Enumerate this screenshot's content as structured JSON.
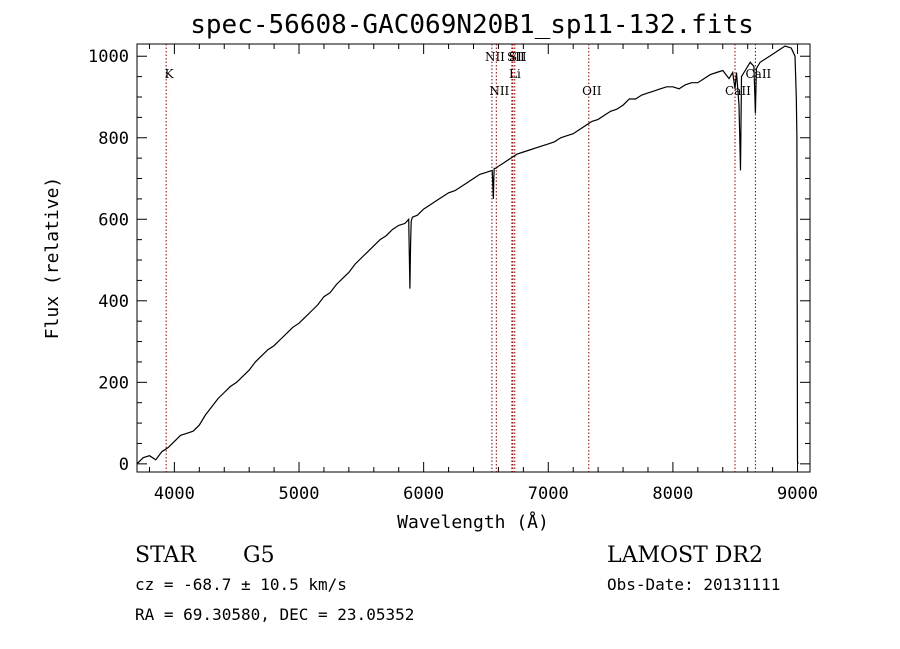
{
  "chart_data": {
    "type": "line",
    "title": "spec-56608-GAC069N20B1_sp11-132.fits",
    "xlabel": "Wavelength (Å)",
    "ylabel": "Flux (relative)",
    "xlim": [
      3700,
      9100
    ],
    "ylim": [
      -20,
      1030
    ],
    "xticks": [
      4000,
      5000,
      6000,
      7000,
      8000,
      9000
    ],
    "yticks": [
      0,
      200,
      400,
      600,
      800,
      1000
    ],
    "grid": false,
    "series": [
      {
        "color": "#000000",
        "x": [
          3700,
          3750,
          3800,
          3850,
          3900,
          3950,
          4000,
          4050,
          4100,
          4150,
          4200,
          4250,
          4300,
          4350,
          4400,
          4450,
          4500,
          4550,
          4600,
          4650,
          4700,
          4750,
          4800,
          4850,
          4900,
          4950,
          5000,
          5050,
          5100,
          5150,
          5200,
          5250,
          5300,
          5350,
          5400,
          5450,
          5500,
          5550,
          5600,
          5650,
          5700,
          5750,
          5800,
          5850,
          5880,
          5890,
          5895,
          5900,
          5910,
          5950,
          6000,
          6050,
          6100,
          6150,
          6200,
          6250,
          6300,
          6350,
          6400,
          6450,
          6500,
          6550,
          6560,
          6563,
          6566,
          6580,
          6600,
          6650,
          6700,
          6750,
          6800,
          6850,
          6900,
          6950,
          7000,
          7050,
          7100,
          7150,
          7200,
          7250,
          7300,
          7350,
          7400,
          7450,
          7500,
          7550,
          7600,
          7650,
          7700,
          7750,
          7800,
          7850,
          7900,
          7950,
          8000,
          8050,
          8100,
          8150,
          8200,
          8250,
          8300,
          8350,
          8400,
          8450,
          8480,
          8498,
          8510,
          8530,
          8542,
          8550,
          8580,
          8620,
          8650,
          8662,
          8670,
          8700,
          8750,
          8800,
          8850,
          8900,
          8950,
          8980,
          8990,
          8995,
          9000,
          9005
        ],
        "y": [
          0,
          15,
          20,
          10,
          30,
          40,
          55,
          70,
          75,
          80,
          95,
          120,
          140,
          160,
          175,
          190,
          200,
          215,
          230,
          250,
          265,
          280,
          290,
          305,
          320,
          335,
          345,
          360,
          375,
          390,
          410,
          420,
          440,
          455,
          470,
          490,
          505,
          520,
          535,
          550,
          560,
          575,
          585,
          590,
          600,
          430,
          540,
          595,
          605,
          610,
          625,
          635,
          645,
          655,
          665,
          670,
          680,
          690,
          700,
          710,
          715,
          720,
          650,
          700,
          725,
          725,
          730,
          740,
          750,
          760,
          765,
          770,
          775,
          780,
          785,
          790,
          800,
          805,
          810,
          820,
          830,
          840,
          845,
          855,
          865,
          870,
          880,
          895,
          895,
          905,
          910,
          915,
          920,
          925,
          925,
          920,
          930,
          935,
          935,
          945,
          955,
          960,
          965,
          945,
          960,
          920,
          960,
          880,
          720,
          950,
          965,
          985,
          975,
          860,
          970,
          985,
          995,
          1005,
          1015,
          1025,
          1020,
          1000,
          900,
          800,
          5,
          0
        ]
      }
    ],
    "spectral_lines": [
      {
        "name": "K",
        "wavelength": 3934
      },
      {
        "name": "NII",
        "wavelength": 6548
      },
      {
        "name": "NII",
        "wavelength": 6583
      },
      {
        "name": "SII",
        "wavelength": 6716
      },
      {
        "name": "SII",
        "wavelength": 6731
      },
      {
        "name": "Li",
        "wavelength": 6708
      },
      {
        "name": "OII",
        "wavelength": 7325
      },
      {
        "name": "CaII",
        "wavelength": 8498
      },
      {
        "name": "CaII",
        "wavelength": 8662
      }
    ],
    "line_marker_color": "#8b0000"
  },
  "info": {
    "class": "STAR",
    "subclass": "G5",
    "survey": "LAMOST DR2",
    "cz": "cz = -68.7 ± 10.5 km/s",
    "obs_date": "Obs-Date: 20131111",
    "radec": "RA =  69.30580, DEC =  23.05352"
  }
}
